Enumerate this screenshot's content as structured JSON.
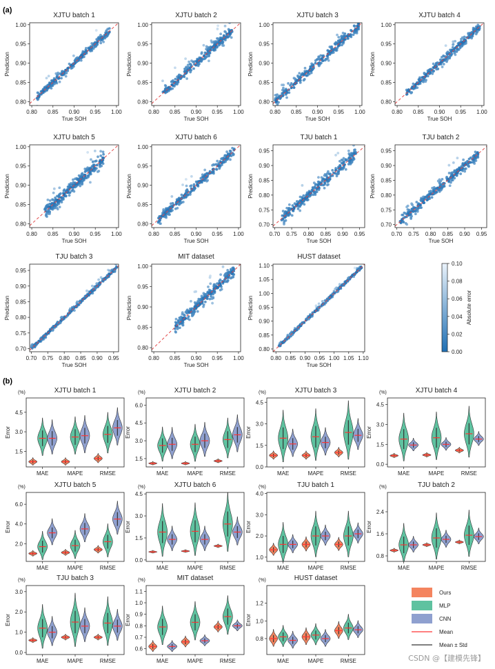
{
  "panel_labels": {
    "a": "(a)",
    "b": "(b)"
  },
  "watermark": "CSDN @【建模先锋】",
  "colors": {
    "ours": "#f4845f",
    "mlp": "#5fc2a0",
    "cnn": "#8fa0cf",
    "mean": "#ff3333",
    "meanstd": "#333333",
    "diagonal": "#e34a4a",
    "cmap_high": "#eaf3fb",
    "cmap_low": "#1f6fb3"
  },
  "colorbar": {
    "label": "Absolute error",
    "ticks": [
      "0.10",
      "0.08",
      "0.06",
      "0.04",
      "0.02",
      "0.00"
    ]
  },
  "legend": [
    "Ours",
    "MLP",
    "CNN",
    "Mean",
    "Mean ± Std"
  ],
  "chart_data": [
    {
      "type": "scatter",
      "title": "XJTU batch 1",
      "xlabel": "True SOH",
      "ylabel": "Prediction",
      "xlim": [
        0.795,
        1.005
      ],
      "ylim": [
        0.79,
        1.005
      ],
      "xticks": [
        "0.80",
        "0.85",
        "0.90",
        "0.95",
        "1.00"
      ],
      "yticks": [
        "0.80",
        "0.85",
        "0.90",
        "0.95",
        "1.00"
      ],
      "x_range": [
        0.81,
        0.985
      ],
      "dev": 0.01,
      "seed": 11
    },
    {
      "type": "scatter",
      "title": "XJTU batch 2",
      "xlabel": "True SOH",
      "ylabel": "Prediction",
      "xlim": [
        0.795,
        1.005
      ],
      "ylim": [
        0.79,
        1.005
      ],
      "xticks": [
        "0.80",
        "0.85",
        "0.90",
        "0.95",
        "1.00"
      ],
      "yticks": [
        "0.80",
        "0.85",
        "0.90",
        "0.95",
        "1.00"
      ],
      "x_range": [
        0.82,
        0.985
      ],
      "dev": 0.013,
      "seed": 12
    },
    {
      "type": "scatter",
      "title": "XJTU batch 3",
      "xlabel": "True SOH",
      "ylabel": "Prediction",
      "xlim": [
        0.795,
        1.005
      ],
      "ylim": [
        0.79,
        1.005
      ],
      "xticks": [
        "0.80",
        "0.85",
        "0.90",
        "0.95",
        "1.00"
      ],
      "yticks": [
        "0.80",
        "0.85",
        "0.90",
        "0.95",
        "1.00"
      ],
      "x_range": [
        0.8,
        0.998
      ],
      "dev": 0.014,
      "seed": 13
    },
    {
      "type": "scatter",
      "title": "XJTU batch 4",
      "xlabel": "True SOH",
      "ylabel": "Prediction",
      "xlim": [
        0.795,
        1.005
      ],
      "ylim": [
        0.79,
        1.005
      ],
      "xticks": [
        "0.80",
        "0.85",
        "0.90",
        "0.95",
        "1.00"
      ],
      "yticks": [
        "0.80",
        "0.85",
        "0.90",
        "0.95",
        "1.00"
      ],
      "x_range": [
        0.82,
        0.995
      ],
      "dev": 0.011,
      "seed": 14
    },
    {
      "type": "scatter",
      "title": "XJTU batch 5",
      "xlabel": "True SOH",
      "ylabel": "Prediction",
      "xlim": [
        0.795,
        1.005
      ],
      "ylim": [
        0.79,
        1.005
      ],
      "xticks": [
        "0.80",
        "0.85",
        "0.90",
        "0.95",
        "1.00"
      ],
      "yticks": [
        "0.80",
        "0.85",
        "0.90",
        "0.95",
        "1.00"
      ],
      "x_range": [
        0.83,
        0.97
      ],
      "dev": 0.016,
      "seed": 15
    },
    {
      "type": "scatter",
      "title": "XJTU batch 6",
      "xlabel": "True SOH",
      "ylabel": "Prediction",
      "xlim": [
        0.795,
        1.005
      ],
      "ylim": [
        0.79,
        1.005
      ],
      "xticks": [
        "0.80",
        "0.85",
        "0.90",
        "0.95",
        "1.00"
      ],
      "yticks": [
        "0.80",
        "0.85",
        "0.90",
        "0.95",
        "1.00"
      ],
      "x_range": [
        0.81,
        0.99
      ],
      "dev": 0.012,
      "seed": 16
    },
    {
      "type": "scatter",
      "title": "TJU batch 1",
      "xlabel": "True SOH",
      "ylabel": "Prediction",
      "xlim": [
        0.695,
        0.965
      ],
      "ylim": [
        0.69,
        0.97
      ],
      "xticks": [
        "0.70",
        "0.75",
        "0.80",
        "0.85",
        "0.90",
        "0.95"
      ],
      "yticks": [
        "0.70",
        "0.75",
        "0.80",
        "0.85",
        "0.90",
        "0.95"
      ],
      "x_range": [
        0.72,
        0.94
      ],
      "dev": 0.02,
      "seed": 21
    },
    {
      "type": "scatter",
      "title": "TJU batch 2",
      "xlabel": "True SOH",
      "ylabel": "Prediction",
      "xlim": [
        0.695,
        0.965
      ],
      "ylim": [
        0.69,
        0.97
      ],
      "xticks": [
        "0.70",
        "0.75",
        "0.80",
        "0.85",
        "0.90",
        "0.95"
      ],
      "yticks": [
        "0.70",
        "0.75",
        "0.80",
        "0.85",
        "0.90",
        "0.95"
      ],
      "x_range": [
        0.71,
        0.94
      ],
      "dev": 0.018,
      "seed": 22
    },
    {
      "type": "scatter",
      "title": "TJU batch 3",
      "xlabel": "True SOH",
      "ylabel": "Prediction",
      "xlim": [
        0.695,
        0.965
      ],
      "ylim": [
        0.69,
        0.97
      ],
      "xticks": [
        "0.70",
        "0.75",
        "0.80",
        "0.85",
        "0.90",
        "0.95"
      ],
      "yticks": [
        "0.70",
        "0.75",
        "0.80",
        "0.85",
        "0.90",
        "0.95"
      ],
      "x_range": [
        0.7,
        0.96
      ],
      "dev": 0.007,
      "seed": 23
    },
    {
      "type": "scatter",
      "title": "MIT dataset",
      "xlabel": "True SOH",
      "ylabel": "Prediction",
      "xlim": [
        0.795,
        1.005
      ],
      "ylim": [
        0.79,
        1.005
      ],
      "xticks": [
        "0.80",
        "0.85",
        "0.90",
        "0.95",
        "1.00"
      ],
      "yticks": [
        "0.80",
        "0.85",
        "0.90",
        "0.95",
        "1.00"
      ],
      "x_range": [
        0.85,
        0.99
      ],
      "dev": 0.014,
      "seed": 24
    },
    {
      "type": "scatter",
      "title": "HUST dataset",
      "xlabel": "True SOH",
      "ylabel": "Prediction",
      "xlim": [
        0.79,
        1.105
      ],
      "ylim": [
        0.79,
        1.105
      ],
      "xticks": [
        "0.80",
        "0.85",
        "0.90",
        "0.95",
        "1.00",
        "1.05",
        "1.10"
      ],
      "yticks": [
        "0.80",
        "0.85",
        "0.90",
        "0.95",
        "1.00",
        "1.05",
        "1.10"
      ],
      "x_range": [
        0.81,
        1.095
      ],
      "dev": 0.006,
      "seed": 25
    },
    {
      "type": "violin",
      "title": "XJTU batch 1",
      "ylabel": "Error",
      "unit": "(%)",
      "categories": [
        "MAE",
        "MAPE",
        "RMSE"
      ],
      "ylim": [
        0.3,
        5.6
      ],
      "yticks": [
        1.5,
        3.0,
        4.5
      ],
      "series": [
        {
          "name": "Ours",
          "mean": [
            0.7,
            0.7,
            0.95
          ],
          "std": [
            0.12,
            0.12,
            0.15
          ]
        },
        {
          "name": "MLP",
          "mean": [
            2.5,
            2.6,
            2.8
          ],
          "std": [
            0.6,
            0.6,
            0.65
          ]
        },
        {
          "name": "CNN",
          "mean": [
            2.5,
            2.7,
            3.3
          ],
          "std": [
            0.55,
            0.6,
            0.6
          ]
        }
      ]
    },
    {
      "type": "violin",
      "title": "XJTU batch 2",
      "ylabel": "Error",
      "unit": "(%)",
      "categories": [
        "MAE",
        "MAPE",
        "RMSE"
      ],
      "ylim": [
        0.8,
        6.6
      ],
      "yticks": [
        1.5,
        3.0,
        4.5,
        6.0
      ],
      "series": [
        {
          "name": "Ours",
          "mean": [
            1.1,
            1.1,
            1.3
          ],
          "std": [
            0.06,
            0.06,
            0.07
          ]
        },
        {
          "name": "MLP",
          "mean": [
            2.6,
            2.7,
            3.1
          ],
          "std": [
            0.6,
            0.65,
            0.7
          ]
        },
        {
          "name": "CNN",
          "mean": [
            2.7,
            3.0,
            3.5
          ],
          "std": [
            0.55,
            0.6,
            0.65
          ]
        }
      ]
    },
    {
      "type": "violin",
      "title": "XJTU batch 3",
      "ylabel": "Error",
      "unit": "(%)",
      "categories": [
        "MAE",
        "MAPE",
        "RMSE"
      ],
      "ylim": [
        0,
        4.8
      ],
      "yticks": [
        0.0,
        1.5,
        3.0,
        4.5
      ],
      "series": [
        {
          "name": "Ours",
          "mean": [
            0.8,
            0.8,
            1.0
          ],
          "std": [
            0.12,
            0.12,
            0.14
          ]
        },
        {
          "name": "MLP",
          "mean": [
            2.0,
            2.1,
            2.4
          ],
          "std": [
            0.75,
            0.75,
            0.85
          ]
        },
        {
          "name": "CNN",
          "mean": [
            1.6,
            1.7,
            2.2
          ],
          "std": [
            0.4,
            0.4,
            0.45
          ]
        }
      ]
    },
    {
      "type": "violin",
      "title": "XJTU batch 4",
      "ylabel": "Error",
      "unit": "(%)",
      "categories": [
        "MAE",
        "MAPE",
        "RMSE"
      ],
      "ylim": [
        -0.2,
        5.0
      ],
      "yticks": [
        0.0,
        1.5,
        3.0,
        4.5
      ],
      "series": [
        {
          "name": "Ours",
          "mean": [
            0.65,
            0.7,
            1.05
          ],
          "std": [
            0.07,
            0.07,
            0.09
          ]
        },
        {
          "name": "MLP",
          "mean": [
            1.9,
            2.0,
            2.3
          ],
          "std": [
            0.75,
            0.75,
            0.8
          ]
        },
        {
          "name": "CNN",
          "mean": [
            1.45,
            1.5,
            1.9
          ],
          "std": [
            0.2,
            0.2,
            0.22
          ]
        }
      ]
    },
    {
      "type": "violin",
      "title": "XJTU batch 5",
      "ylabel": "Error",
      "unit": "(%)",
      "categories": [
        "MAE",
        "MAPE",
        "RMSE"
      ],
      "ylim": [
        0.2,
        7.2
      ],
      "yticks": [
        2.0,
        4.0,
        6.0
      ],
      "series": [
        {
          "name": "Ours",
          "mean": [
            1.0,
            1.1,
            1.4
          ],
          "std": [
            0.12,
            0.13,
            0.16
          ]
        },
        {
          "name": "MLP",
          "mean": [
            1.7,
            1.8,
            2.2
          ],
          "std": [
            0.6,
            0.6,
            0.7
          ]
        },
        {
          "name": "CNN",
          "mean": [
            3.1,
            3.5,
            4.5
          ],
          "std": [
            0.55,
            0.6,
            0.7
          ]
        }
      ]
    },
    {
      "type": "violin",
      "title": "XJTU batch 6",
      "ylabel": "Error",
      "unit": "(%)",
      "categories": [
        "MAE",
        "MAPE",
        "RMSE"
      ],
      "ylim": [
        -0.1,
        4.6
      ],
      "yticks": [
        0.0,
        1.5,
        3.0,
        4.5
      ],
      "series": [
        {
          "name": "Ours",
          "mean": [
            0.55,
            0.6,
            0.95
          ],
          "std": [
            0.04,
            0.04,
            0.05
          ]
        },
        {
          "name": "MLP",
          "mean": [
            1.9,
            1.95,
            2.45
          ],
          "std": [
            0.75,
            0.75,
            0.85
          ]
        },
        {
          "name": "CNN",
          "mean": [
            1.4,
            1.4,
            1.9
          ],
          "std": [
            0.35,
            0.35,
            0.4
          ]
        }
      ]
    },
    {
      "type": "violin",
      "title": "TJU batch 1",
      "ylabel": "Error",
      "unit": "(%)",
      "categories": [
        "MAE",
        "MAPE",
        "RMSE"
      ],
      "ylim": [
        0.8,
        4.05
      ],
      "yticks": [
        1.0,
        2.0,
        3.0,
        4.0
      ],
      "series": [
        {
          "name": "Ours",
          "mean": [
            1.35,
            1.6,
            1.6
          ],
          "std": [
            0.12,
            0.14,
            0.13
          ]
        },
        {
          "name": "MLP",
          "mean": [
            1.6,
            2.0,
            2.0
          ],
          "std": [
            0.4,
            0.45,
            0.45
          ]
        },
        {
          "name": "CNN",
          "mean": [
            1.6,
            2.0,
            2.1
          ],
          "std": [
            0.18,
            0.2,
            0.2
          ]
        }
      ]
    },
    {
      "type": "violin",
      "title": "TJU batch 2",
      "ylabel": "Error",
      "unit": "(%)",
      "categories": [
        "MAE",
        "MAPE",
        "RMSE"
      ],
      "ylim": [
        0.6,
        3.1
      ],
      "yticks": [
        0.8,
        1.6,
        2.4
      ],
      "series": [
        {
          "name": "Ours",
          "mean": [
            1.0,
            1.2,
            1.3
          ],
          "std": [
            0.03,
            0.03,
            0.03
          ]
        },
        {
          "name": "MLP",
          "mean": [
            1.2,
            1.45,
            1.55
          ],
          "std": [
            0.3,
            0.35,
            0.35
          ]
        },
        {
          "name": "CNN",
          "mean": [
            1.2,
            1.4,
            1.5
          ],
          "std": [
            0.12,
            0.13,
            0.12
          ]
        }
      ]
    },
    {
      "type": "violin",
      "title": "TJU batch 3",
      "ylabel": "Error",
      "unit": "(%)",
      "categories": [
        "MAE",
        "MAPE",
        "RMSE"
      ],
      "ylim": [
        -0.1,
        3.3
      ],
      "yticks": [
        0.0,
        1.0,
        2.0,
        3.0
      ],
      "series": [
        {
          "name": "Ours",
          "mean": [
            0.6,
            0.75,
            0.75
          ],
          "std": [
            0.05,
            0.06,
            0.06
          ]
        },
        {
          "name": "MLP",
          "mean": [
            1.2,
            1.5,
            1.45
          ],
          "std": [
            0.45,
            0.55,
            0.5
          ]
        },
        {
          "name": "CNN",
          "mean": [
            1.0,
            1.3,
            1.3
          ],
          "std": [
            0.3,
            0.35,
            0.32
          ]
        }
      ]
    },
    {
      "type": "violin",
      "title": "MIT dataset",
      "ylabel": "Error",
      "unit": "(%)",
      "categories": [
        "MAE",
        "MAPE",
        "RMSE"
      ],
      "ylim": [
        0.55,
        1.15
      ],
      "yticks": [
        0.6,
        0.7,
        0.8,
        0.9,
        1.0,
        1.1
      ],
      "series": [
        {
          "name": "Ours",
          "mean": [
            0.62,
            0.66,
            0.79
          ],
          "std": [
            0.02,
            0.02,
            0.02
          ]
        },
        {
          "name": "MLP",
          "mean": [
            0.79,
            0.83,
            0.88
          ],
          "std": [
            0.07,
            0.07,
            0.07
          ]
        },
        {
          "name": "CNN",
          "mean": [
            0.62,
            0.67,
            0.8
          ],
          "std": [
            0.02,
            0.02,
            0.02
          ]
        }
      ]
    },
    {
      "type": "violin",
      "title": "HUST dataset",
      "ylabel": "Error",
      "unit": "(%)",
      "categories": [
        "MAE",
        "MAPE",
        "RMSE"
      ],
      "ylim": [
        0.62,
        1.4
      ],
      "yticks": [
        0.8,
        1.0,
        1.2
      ],
      "series": [
        {
          "name": "Ours",
          "mean": [
            0.8,
            0.82,
            0.89
          ],
          "std": [
            0.04,
            0.04,
            0.04
          ]
        },
        {
          "name": "MLP",
          "mean": [
            0.82,
            0.84,
            0.92
          ],
          "std": [
            0.05,
            0.05,
            0.06
          ]
        },
        {
          "name": "CNN",
          "mean": [
            0.78,
            0.8,
            0.9
          ],
          "std": [
            0.04,
            0.04,
            0.04
          ]
        }
      ]
    }
  ]
}
